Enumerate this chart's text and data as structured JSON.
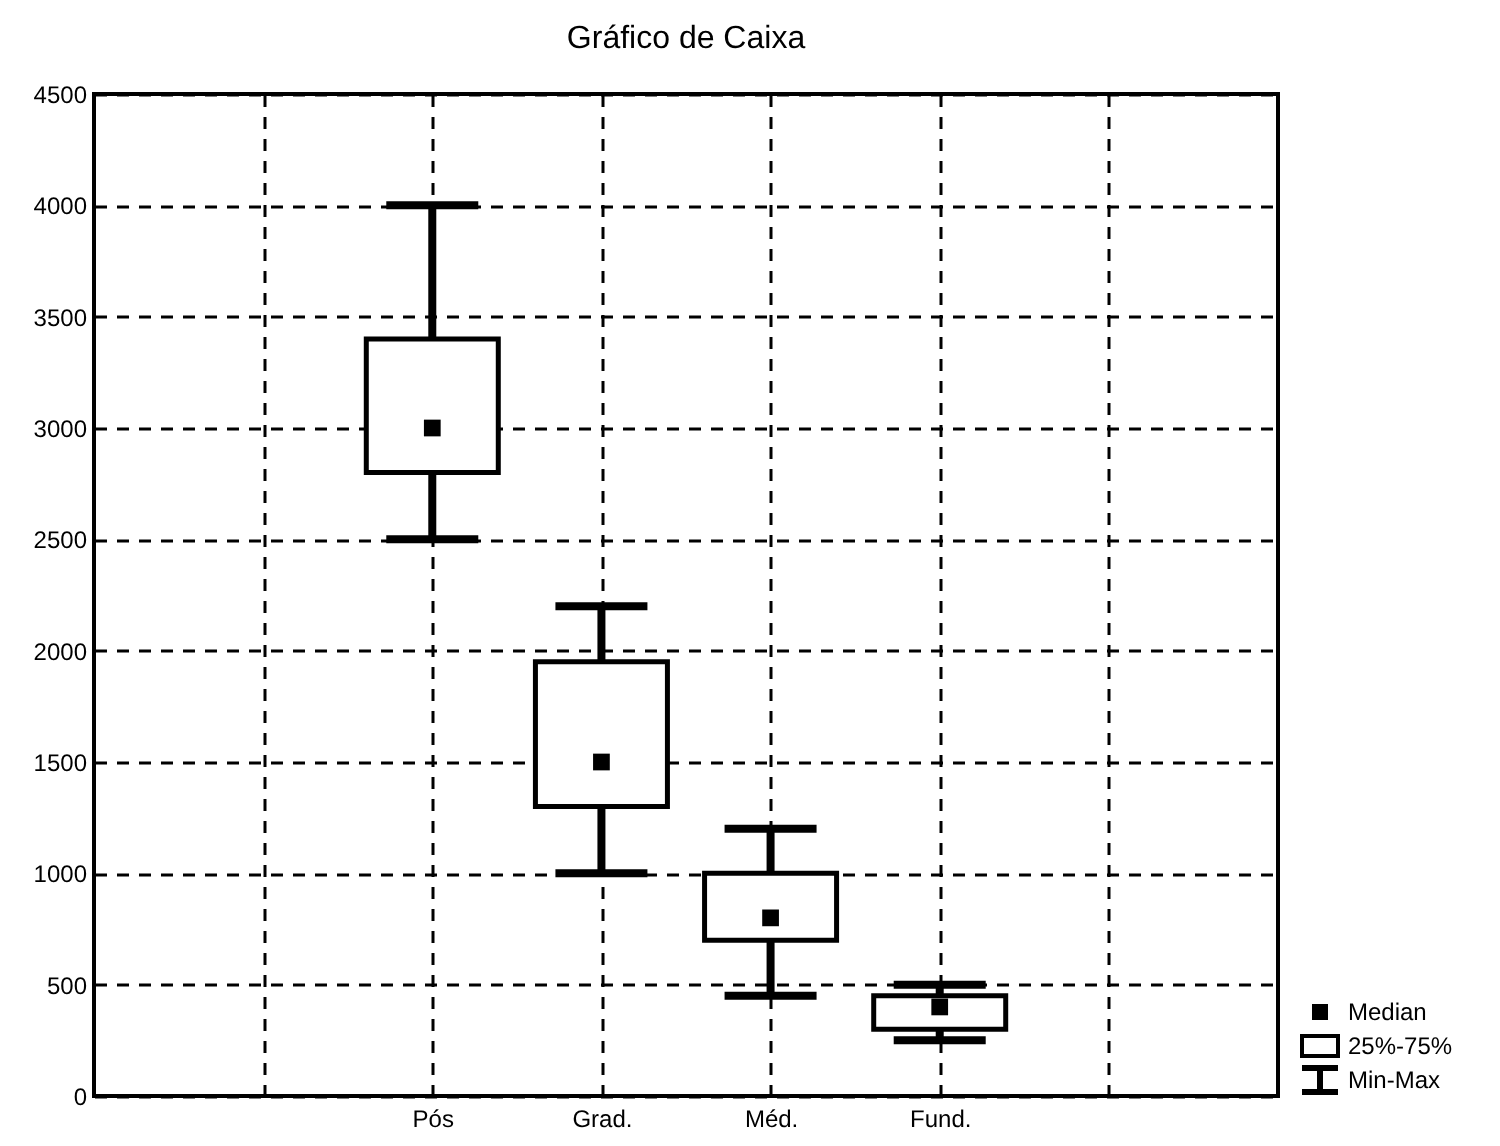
{
  "chart_data": {
    "type": "box",
    "title": "Gráfico de Caixa",
    "categories": [
      null,
      "Pós",
      "Grad.",
      "Méd.",
      "Fund.",
      null
    ],
    "boxes": [
      null,
      {
        "low": 2500,
        "q1": 2800,
        "median": 3000,
        "q3": 3400,
        "high": 4000
      },
      {
        "low": 1000,
        "q1": 1300,
        "median": 1500,
        "q3": 1950,
        "high": 2200
      },
      {
        "low": 450,
        "q1": 700,
        "median": 800,
        "q3": 1000,
        "high": 1200
      },
      {
        "low": 250,
        "q1": 300,
        "median": 400,
        "q3": 450,
        "high": 500
      },
      null
    ],
    "ylim": [
      0,
      4500
    ],
    "yticks": [
      0,
      500,
      1000,
      1500,
      2000,
      2500,
      3000,
      3500,
      4000,
      4500
    ],
    "grid": true,
    "annotations": [
      "Median",
      "25%-75%",
      "Min-Max"
    ]
  }
}
